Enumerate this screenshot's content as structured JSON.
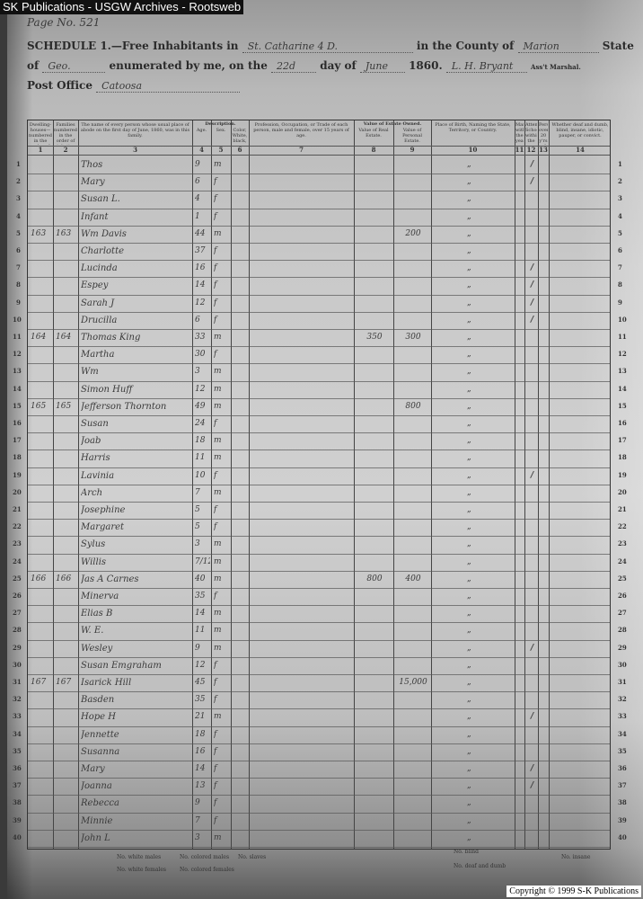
{
  "window_title": "SK Publications - USGW Archives - Rootsweb",
  "copyright": "Copyright © 1999 S-K Publications",
  "header": {
    "page_no": "Page No. 521",
    "schedule": "SCHEDULE 1.—Free Inhabitants in",
    "in_county": "in the County of",
    "state_word": "State",
    "of_word": "of",
    "enumerated": "enumerated by me, on the",
    "day_of": "day of",
    "year": "1860.",
    "marshal": "Ass't Marshal.",
    "post_office": "Post Office",
    "hw_district": "St. Catharine  4 D.",
    "hw_county": "Marion",
    "hw_state": "Geo.",
    "hw_day": "22d",
    "hw_month": "June",
    "hw_marshal": "L. H. Bryant",
    "hw_post_office": "Catoosa"
  },
  "columns": [
    {
      "num": "1",
      "label": "Dwelling-houses—numbered in the order of visitation."
    },
    {
      "num": "2",
      "label": "Families numbered in the order of visitation."
    },
    {
      "num": "3",
      "label": "The name of every person whose usual place of abode on the first day of June, 1860, was in this family."
    },
    {
      "num": "4",
      "label": "Age."
    },
    {
      "num": "5",
      "label": "Sex."
    },
    {
      "num": "6",
      "label": "Color, White, black, or mulatto."
    },
    {
      "num": "7",
      "label": "Profession, Occupation, or Trade of each person, male and female, over 15 years of age."
    },
    {
      "num": "8",
      "label": "Value of Real Estate."
    },
    {
      "num": "9",
      "label": "Value of Personal Estate."
    },
    {
      "num": "10",
      "label": "Place of Birth, Naming the State, Territory, or Country."
    },
    {
      "num": "11",
      "label": "Married within the year."
    },
    {
      "num": "12",
      "label": "Attended School within the year."
    },
    {
      "num": "13",
      "label": "Persons over 20 y'rs of age who cannot read & write."
    },
    {
      "num": "14",
      "label": "Whether deaf and dumb, blind, insane, idiotic, pauper, or convict."
    }
  ],
  "group_headers": {
    "description": "Description.",
    "value_estate": "Value of Estate Owned."
  },
  "rows": [
    {
      "n": "1",
      "d": "",
      "f": "",
      "name": "Thos",
      "age": "9",
      "sex": "m",
      "re": "",
      "pe": "",
      "school": "/"
    },
    {
      "n": "2",
      "d": "",
      "f": "",
      "name": "Mary",
      "age": "6",
      "sex": "f",
      "re": "",
      "pe": "",
      "school": "/"
    },
    {
      "n": "3",
      "d": "",
      "f": "",
      "name": "Susan L.",
      "age": "4",
      "sex": "f",
      "re": "",
      "pe": "",
      "school": ""
    },
    {
      "n": "4",
      "d": "",
      "f": "",
      "name": "Infant",
      "age": "1",
      "sex": "f",
      "re": "",
      "pe": "",
      "school": ""
    },
    {
      "n": "5",
      "d": "163",
      "f": "163",
      "name": "Wm Davis",
      "age": "44",
      "sex": "m",
      "re": "",
      "pe": "200",
      "school": ""
    },
    {
      "n": "6",
      "d": "",
      "f": "",
      "name": "Charlotte",
      "age": "37",
      "sex": "f",
      "re": "",
      "pe": "",
      "school": ""
    },
    {
      "n": "7",
      "d": "",
      "f": "",
      "name": "Lucinda",
      "age": "16",
      "sex": "f",
      "re": "",
      "pe": "",
      "school": "/"
    },
    {
      "n": "8",
      "d": "",
      "f": "",
      "name": "Espey",
      "age": "14",
      "sex": "f",
      "re": "",
      "pe": "",
      "school": "/"
    },
    {
      "n": "9",
      "d": "",
      "f": "",
      "name": "Sarah J",
      "age": "12",
      "sex": "f",
      "re": "",
      "pe": "",
      "school": "/"
    },
    {
      "n": "10",
      "d": "",
      "f": "",
      "name": "Drucilla",
      "age": "6",
      "sex": "f",
      "re": "",
      "pe": "",
      "school": "/"
    },
    {
      "n": "11",
      "d": "164",
      "f": "164",
      "name": "Thomas King",
      "age": "33",
      "sex": "m",
      "re": "350",
      "pe": "300",
      "school": ""
    },
    {
      "n": "12",
      "d": "",
      "f": "",
      "name": "Martha",
      "age": "30",
      "sex": "f",
      "re": "",
      "pe": "",
      "school": ""
    },
    {
      "n": "13",
      "d": "",
      "f": "",
      "name": "Wm",
      "age": "3",
      "sex": "m",
      "re": "",
      "pe": "",
      "school": ""
    },
    {
      "n": "14",
      "d": "",
      "f": "",
      "name": "Simon Huff",
      "age": "12",
      "sex": "m",
      "re": "",
      "pe": "",
      "school": ""
    },
    {
      "n": "15",
      "d": "165",
      "f": "165",
      "name": "Jefferson Thornton",
      "age": "49",
      "sex": "m",
      "re": "",
      "pe": "800",
      "school": ""
    },
    {
      "n": "16",
      "d": "",
      "f": "",
      "name": "Susan",
      "age": "24",
      "sex": "f",
      "re": "",
      "pe": "",
      "school": ""
    },
    {
      "n": "17",
      "d": "",
      "f": "",
      "name": "Joab",
      "age": "18",
      "sex": "m",
      "re": "",
      "pe": "",
      "school": ""
    },
    {
      "n": "18",
      "d": "",
      "f": "",
      "name": "Harris",
      "age": "11",
      "sex": "m",
      "re": "",
      "pe": "",
      "school": ""
    },
    {
      "n": "19",
      "d": "",
      "f": "",
      "name": "Lavinia",
      "age": "10",
      "sex": "f",
      "re": "",
      "pe": "",
      "school": "/"
    },
    {
      "n": "20",
      "d": "",
      "f": "",
      "name": "Arch",
      "age": "7",
      "sex": "m",
      "re": "",
      "pe": "",
      "school": ""
    },
    {
      "n": "21",
      "d": "",
      "f": "",
      "name": "Josephine",
      "age": "5",
      "sex": "f",
      "re": "",
      "pe": "",
      "school": ""
    },
    {
      "n": "22",
      "d": "",
      "f": "",
      "name": "Margaret",
      "age": "5",
      "sex": "f",
      "re": "",
      "pe": "",
      "school": ""
    },
    {
      "n": "23",
      "d": "",
      "f": "",
      "name": "Sylus",
      "age": "3",
      "sex": "m",
      "re": "",
      "pe": "",
      "school": ""
    },
    {
      "n": "24",
      "d": "",
      "f": "",
      "name": "Willis",
      "age": "7/12",
      "sex": "m",
      "re": "",
      "pe": "",
      "school": ""
    },
    {
      "n": "25",
      "d": "166",
      "f": "166",
      "name": "Jas A Carnes",
      "age": "40",
      "sex": "m",
      "re": "800",
      "pe": "400",
      "school": ""
    },
    {
      "n": "26",
      "d": "",
      "f": "",
      "name": "Minerva",
      "age": "35",
      "sex": "f",
      "re": "",
      "pe": "",
      "school": ""
    },
    {
      "n": "27",
      "d": "",
      "f": "",
      "name": "Elias B",
      "age": "14",
      "sex": "m",
      "re": "",
      "pe": "",
      "school": ""
    },
    {
      "n": "28",
      "d": "",
      "f": "",
      "name": "W. E.",
      "age": "11",
      "sex": "m",
      "re": "",
      "pe": "",
      "school": ""
    },
    {
      "n": "29",
      "d": "",
      "f": "",
      "name": "Wesley",
      "age": "9",
      "sex": "m",
      "re": "",
      "pe": "",
      "school": "/"
    },
    {
      "n": "30",
      "d": "",
      "f": "",
      "name": "Susan Emgraham",
      "age": "12",
      "sex": "f",
      "re": "",
      "pe": "",
      "school": ""
    },
    {
      "n": "31",
      "d": "167",
      "f": "167",
      "name": "Isarick Hill",
      "age": "45",
      "sex": "f",
      "re": "",
      "pe": "15,000",
      "school": ""
    },
    {
      "n": "32",
      "d": "",
      "f": "",
      "name": "Basden",
      "age": "35",
      "sex": "f",
      "re": "",
      "pe": "",
      "school": ""
    },
    {
      "n": "33",
      "d": "",
      "f": "",
      "name": "Hope H",
      "age": "21",
      "sex": "m",
      "re": "",
      "pe": "",
      "school": "/"
    },
    {
      "n": "34",
      "d": "",
      "f": "",
      "name": "Jennette",
      "age": "18",
      "sex": "f",
      "re": "",
      "pe": "",
      "school": ""
    },
    {
      "n": "35",
      "d": "",
      "f": "",
      "name": "Susanna",
      "age": "16",
      "sex": "f",
      "re": "",
      "pe": "",
      "school": ""
    },
    {
      "n": "36",
      "d": "",
      "f": "",
      "name": "Mary",
      "age": "14",
      "sex": "f",
      "re": "",
      "pe": "",
      "school": "/"
    },
    {
      "n": "37",
      "d": "",
      "f": "",
      "name": "Joanna",
      "age": "13",
      "sex": "f",
      "re": "",
      "pe": "",
      "school": "/"
    },
    {
      "n": "38",
      "d": "",
      "f": "",
      "name": "Rebecca",
      "age": "9",
      "sex": "f",
      "re": "",
      "pe": "",
      "school": ""
    },
    {
      "n": "39",
      "d": "",
      "f": "",
      "name": "Minnie",
      "age": "7",
      "sex": "f",
      "re": "",
      "pe": "",
      "school": ""
    },
    {
      "n": "40",
      "d": "",
      "f": "",
      "name": "John L",
      "age": "3",
      "sex": "m",
      "re": "",
      "pe": "",
      "school": ""
    }
  ],
  "ditto_mark": "„",
  "footer": {
    "white_males": "No. white males",
    "white_females": "No. white females",
    "colored_males": "No. colored males",
    "colored_females": "No. colored females",
    "slaves": "No. slaves",
    "blind": "No. blind",
    "deaf": "No. deaf and dumb",
    "insane": "No. insane"
  }
}
